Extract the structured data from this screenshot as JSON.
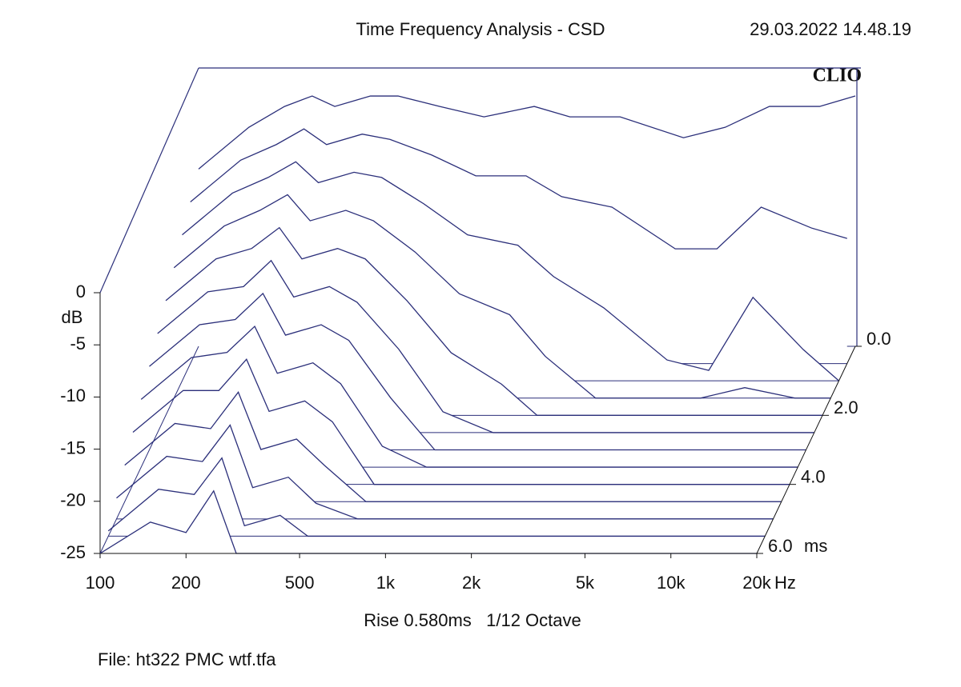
{
  "chart_data": {
    "type": "waterfall",
    "title": "Time Frequency Analysis - CSD",
    "date": "29.03.2022 14.48.19",
    "logo": "CLIO",
    "subtitle": "Rise 0.580ms   1/12 Octave",
    "file": "File: ht322 PMC wtf.tfa",
    "y_label": "dB",
    "x_unit": "Hz",
    "z_unit": "ms",
    "color": "#2b2f7a",
    "log_x": true,
    "xlim": [
      100,
      20000
    ],
    "ylim": [
      -25,
      0
    ],
    "zlim": [
      0,
      6
    ],
    "xticks": [
      100,
      200,
      500,
      {
        "value": 1000,
        "label": "1k"
      },
      {
        "value": 2000,
        "label": "2k"
      },
      {
        "value": 5000,
        "label": "5k"
      },
      {
        "value": 10000,
        "label": "10k"
      },
      {
        "value": 20000,
        "label": "20k"
      }
    ],
    "yticks": [
      0,
      -5,
      -10,
      -15,
      -20,
      -25
    ],
    "zticks": [
      {
        "value": 0,
        "label": "0.0"
      },
      {
        "value": 2,
        "label": "2.0"
      },
      {
        "value": 4,
        "label": "4.0"
      },
      {
        "value": 6,
        "label": "6.0"
      }
    ],
    "x": [
      100,
      150,
      200,
      250,
      300,
      400,
      500,
      700,
      1000,
      1500,
      2000,
      3000,
      5000,
      7000,
      10000,
      15000,
      20000
    ],
    "times": [
      0,
      0.5,
      1,
      1.5,
      2,
      2.5,
      3,
      3.5,
      4,
      4.5,
      5,
      5.5,
      6
    ],
    "values": [
      [
        -8,
        -4,
        -2,
        -1,
        -2,
        -1,
        -1,
        -2,
        -3,
        -2,
        -3,
        -3,
        -5,
        -4,
        -2,
        -2,
        -1
      ],
      [
        -9.5,
        -5.5,
        -4,
        -2.5,
        -4,
        -3,
        -3.5,
        -5,
        -7,
        -7,
        -9,
        -10,
        -14,
        -14,
        -10,
        -12,
        -13
      ],
      [
        -11,
        -7,
        -5.5,
        -4,
        -6,
        -5,
        -5.5,
        -8,
        -11,
        -12,
        -15,
        -18,
        -23,
        -24,
        -17,
        -22,
        -25
      ],
      [
        -12.5,
        -8.5,
        -7,
        -5.5,
        -8,
        -7,
        -8,
        -11,
        -15,
        -17,
        -21,
        -25,
        -25,
        -25,
        -24,
        -25,
        -25
      ],
      [
        -14,
        -10,
        -9,
        -7,
        -10,
        -9,
        -10,
        -14,
        -19,
        -22,
        -25,
        -25,
        -25,
        -25,
        -25,
        -25,
        -25
      ],
      [
        -15.5,
        -11.5,
        -11,
        -8.5,
        -12,
        -11,
        -12.5,
        -17,
        -23,
        -25,
        -25,
        -25,
        -25,
        -25,
        -25,
        -25,
        -25
      ],
      [
        -17,
        -13,
        -12.5,
        -10,
        -14,
        -13,
        -14.5,
        -20,
        -25,
        -25,
        -25,
        -25,
        -25,
        -25,
        -25,
        -25,
        -25
      ],
      [
        -18.5,
        -14.5,
        -14,
        -11.5,
        -16,
        -15,
        -17,
        -23,
        -25,
        -25,
        -25,
        -25,
        -25,
        -25,
        -25,
        -25,
        -25
      ],
      [
        -20,
        -16,
        -16,
        -13,
        -18,
        -17,
        -19,
        -25,
        -25,
        -25,
        -25,
        -25,
        -25,
        -25,
        -25,
        -25,
        -25
      ],
      [
        -21.5,
        -17.5,
        -18,
        -14.5,
        -20,
        -19,
        -21.5,
        -25,
        -25,
        -25,
        -25,
        -25,
        -25,
        -25,
        -25,
        -25,
        -25
      ],
      [
        -23,
        -19,
        -19.5,
        -16,
        -22,
        -21,
        -23.5,
        -25,
        -25,
        -25,
        -25,
        -25,
        -25,
        -25,
        -25,
        -25,
        -25
      ],
      [
        -24.5,
        -20.5,
        -21,
        -17.5,
        -24,
        -23,
        -25,
        -25,
        -25,
        -25,
        -25,
        -25,
        -25,
        -25,
        -25,
        -25,
        -25
      ],
      [
        -25,
        -22,
        -23,
        -19,
        -25,
        -25,
        -25,
        -25,
        -25,
        -25,
        -25,
        -25,
        -25,
        -25,
        -25,
        -25,
        -25
      ]
    ]
  }
}
